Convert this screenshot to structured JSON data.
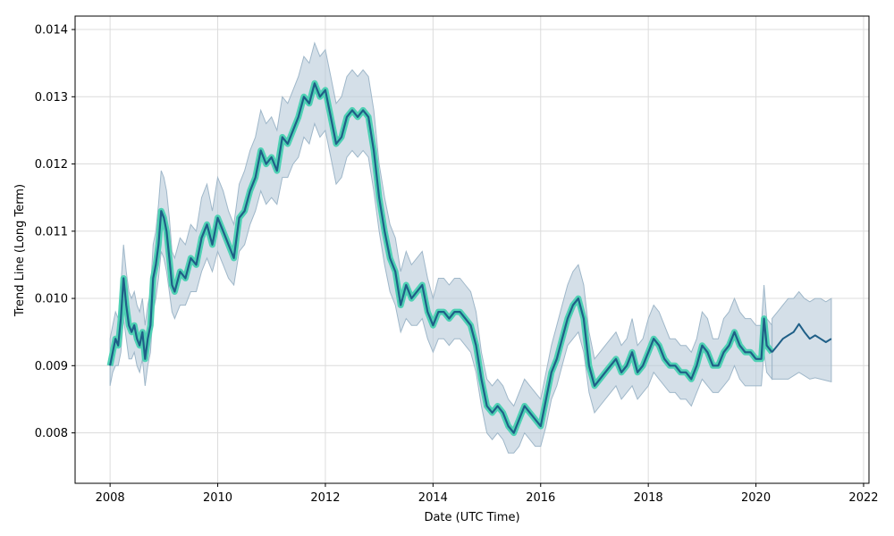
{
  "chart_data": {
    "type": "line",
    "title": "",
    "xlabel": "Date (UTC Time)",
    "ylabel": "Trend Line (Long Term)",
    "xlim": [
      2007.35,
      2022.1
    ],
    "ylim": [
      0.00725,
      0.0142
    ],
    "x_ticks": [
      {
        "value": 2008,
        "label": "2008"
      },
      {
        "value": 2010,
        "label": "2010"
      },
      {
        "value": 2012,
        "label": "2012"
      },
      {
        "value": 2014,
        "label": "2014"
      },
      {
        "value": 2016,
        "label": "2016"
      },
      {
        "value": 2018,
        "label": "2018"
      },
      {
        "value": 2020,
        "label": "2020"
      },
      {
        "value": 2022,
        "label": "2022"
      }
    ],
    "y_ticks": [
      {
        "value": 0.008,
        "label": "0.008"
      },
      {
        "value": 0.009,
        "label": "0.009"
      },
      {
        "value": 0.01,
        "label": "0.010"
      },
      {
        "value": 0.011,
        "label": "0.011"
      },
      {
        "value": 0.012,
        "label": "0.012"
      },
      {
        "value": 0.013,
        "label": "0.013"
      },
      {
        "value": 0.014,
        "label": "0.014"
      }
    ],
    "grid": true,
    "colors": {
      "trend_line": "#1f5f87",
      "historical_highlight": "#4fd1b4",
      "band_fill": "#b7cad8",
      "band_edge": "#9fb7c9",
      "grid": "#dcdcdc",
      "axis": "#000000"
    },
    "series": [
      {
        "kind": "historical",
        "x": [
          2008.0,
          2008.05,
          2008.1,
          2008.15,
          2008.2,
          2008.25,
          2008.3,
          2008.35,
          2008.4,
          2008.45,
          2008.5,
          2008.55,
          2008.6,
          2008.65,
          2008.7,
          2008.75,
          2008.8,
          2008.85,
          2008.9,
          2008.95,
          2009.0,
          2009.05,
          2009.1,
          2009.15,
          2009.2,
          2009.3,
          2009.4,
          2009.5,
          2009.6,
          2009.7,
          2009.8,
          2009.9,
          2010.0,
          2010.1,
          2010.2,
          2010.3,
          2010.4,
          2010.5,
          2010.6,
          2010.7,
          2010.8,
          2010.9,
          2011.0,
          2011.1,
          2011.2,
          2011.3,
          2011.4,
          2011.5,
          2011.6,
          2011.7,
          2011.8,
          2011.9,
          2012.0,
          2012.1,
          2012.2,
          2012.3,
          2012.4,
          2012.5,
          2012.6,
          2012.7,
          2012.8,
          2012.9,
          2013.0,
          2013.1,
          2013.2,
          2013.3,
          2013.4,
          2013.5,
          2013.6,
          2013.7,
          2013.8,
          2013.9,
          2014.0,
          2014.1,
          2014.2,
          2014.3,
          2014.4,
          2014.5,
          2014.6,
          2014.7,
          2014.8,
          2014.9,
          2015.0,
          2015.1,
          2015.2,
          2015.3,
          2015.4,
          2015.5,
          2015.6,
          2015.7,
          2015.8,
          2015.9,
          2016.0,
          2016.1,
          2016.2,
          2016.3,
          2016.4,
          2016.5,
          2016.6,
          2016.7,
          2016.8,
          2016.9,
          2017.0,
          2017.1,
          2017.2,
          2017.3,
          2017.4,
          2017.5,
          2017.6,
          2017.7,
          2017.8,
          2017.9,
          2018.0,
          2018.1,
          2018.2,
          2018.3,
          2018.4,
          2018.5,
          2018.6,
          2018.7,
          2018.8,
          2018.9,
          2019.0,
          2019.1,
          2019.2,
          2019.3,
          2019.4,
          2019.5,
          2019.6,
          2019.7,
          2019.8,
          2019.9,
          2020.0,
          2020.1,
          2020.15,
          2020.2,
          2020.3
        ],
        "y": [
          0.009,
          0.0092,
          0.0094,
          0.0093,
          0.0097,
          0.0103,
          0.0099,
          0.0096,
          0.0095,
          0.0096,
          0.0094,
          0.0093,
          0.0095,
          0.0091,
          0.0094,
          0.0096,
          0.0103,
          0.0105,
          0.0108,
          0.0113,
          0.0112,
          0.011,
          0.0106,
          0.0102,
          0.0101,
          0.0104,
          0.0103,
          0.0106,
          0.0105,
          0.0109,
          0.0111,
          0.0108,
          0.0112,
          0.011,
          0.0108,
          0.0106,
          0.0112,
          0.0113,
          0.0116,
          0.0118,
          0.0122,
          0.012,
          0.0121,
          0.0119,
          0.0124,
          0.0123,
          0.0125,
          0.0127,
          0.013,
          0.0129,
          0.0132,
          0.013,
          0.0131,
          0.0127,
          0.0123,
          0.0124,
          0.0127,
          0.0128,
          0.0127,
          0.0128,
          0.0127,
          0.0122,
          0.0115,
          0.011,
          0.0106,
          0.0104,
          0.0099,
          0.0102,
          0.01,
          0.0101,
          0.0102,
          0.0098,
          0.0096,
          0.0098,
          0.0098,
          0.0097,
          0.0098,
          0.0098,
          0.0097,
          0.0096,
          0.0093,
          0.0088,
          0.0084,
          0.0083,
          0.0084,
          0.0083,
          0.0081,
          0.008,
          0.0082,
          0.0084,
          0.0083,
          0.0082,
          0.0081,
          0.0085,
          0.0089,
          0.0091,
          0.0094,
          0.0097,
          0.0099,
          0.01,
          0.0097,
          0.009,
          0.0087,
          0.0088,
          0.0089,
          0.009,
          0.0091,
          0.0089,
          0.009,
          0.0092,
          0.0089,
          0.009,
          0.0092,
          0.0094,
          0.0093,
          0.0091,
          0.009,
          0.009,
          0.0089,
          0.0089,
          0.0088,
          0.009,
          0.0093,
          0.0092,
          0.009,
          0.009,
          0.0092,
          0.0093,
          0.0095,
          0.0093,
          0.0092,
          0.0092,
          0.0091,
          0.0091,
          0.0097,
          0.0093,
          0.0092
        ],
        "lower": [
          0.0087,
          0.0089,
          0.009,
          0.009,
          0.0092,
          0.0097,
          0.0094,
          0.0091,
          0.0091,
          0.0092,
          0.009,
          0.0089,
          0.0091,
          0.0087,
          0.009,
          0.0092,
          0.0098,
          0.01,
          0.0103,
          0.0107,
          0.0106,
          0.0104,
          0.0101,
          0.0098,
          0.0097,
          0.0099,
          0.0099,
          0.0101,
          0.0101,
          0.0104,
          0.0106,
          0.0104,
          0.0107,
          0.0105,
          0.0103,
          0.0102,
          0.0107,
          0.0108,
          0.0111,
          0.0113,
          0.0116,
          0.0114,
          0.0115,
          0.0114,
          0.0118,
          0.0118,
          0.012,
          0.0121,
          0.0124,
          0.0123,
          0.0126,
          0.0124,
          0.0125,
          0.0121,
          0.0117,
          0.0118,
          0.0121,
          0.0122,
          0.0121,
          0.0122,
          0.0121,
          0.0116,
          0.011,
          0.0105,
          0.0101,
          0.0099,
          0.0095,
          0.0097,
          0.0096,
          0.0096,
          0.0097,
          0.0094,
          0.0092,
          0.0094,
          0.0094,
          0.0093,
          0.0094,
          0.0094,
          0.0093,
          0.0092,
          0.0089,
          0.0084,
          0.008,
          0.0079,
          0.008,
          0.0079,
          0.0077,
          0.0077,
          0.0078,
          0.008,
          0.0079,
          0.0078,
          0.0078,
          0.0081,
          0.0085,
          0.0087,
          0.009,
          0.0093,
          0.0094,
          0.0095,
          0.0092,
          0.0086,
          0.0083,
          0.0084,
          0.0085,
          0.0086,
          0.0087,
          0.0085,
          0.0086,
          0.0087,
          0.0085,
          0.0086,
          0.0087,
          0.0089,
          0.0088,
          0.0087,
          0.0086,
          0.0086,
          0.0085,
          0.0085,
          0.0084,
          0.0086,
          0.0088,
          0.0087,
          0.0086,
          0.0086,
          0.0087,
          0.0088,
          0.009,
          0.0088,
          0.0087,
          0.0087,
          0.0087,
          0.0087,
          0.0092,
          0.0089,
          0.0088
        ],
        "upper": [
          0.0094,
          0.0096,
          0.0098,
          0.0097,
          0.0102,
          0.0108,
          0.0104,
          0.0101,
          0.01,
          0.0101,
          0.0099,
          0.0098,
          0.01,
          0.0096,
          0.0099,
          0.0101,
          0.0108,
          0.011,
          0.0114,
          0.0119,
          0.0118,
          0.0116,
          0.0112,
          0.0107,
          0.0106,
          0.0109,
          0.0108,
          0.0111,
          0.011,
          0.0115,
          0.0117,
          0.0113,
          0.0118,
          0.0116,
          0.0113,
          0.0111,
          0.0117,
          0.0119,
          0.0122,
          0.0124,
          0.0128,
          0.0126,
          0.0127,
          0.0125,
          0.013,
          0.0129,
          0.0131,
          0.0133,
          0.0136,
          0.0135,
          0.0138,
          0.0136,
          0.0137,
          0.0133,
          0.0129,
          0.013,
          0.0133,
          0.0134,
          0.0133,
          0.0134,
          0.0133,
          0.0128,
          0.012,
          0.0115,
          0.0111,
          0.0109,
          0.0104,
          0.0107,
          0.0105,
          0.0106,
          0.0107,
          0.0103,
          0.01,
          0.0103,
          0.0103,
          0.0102,
          0.0103,
          0.0103,
          0.0102,
          0.0101,
          0.0098,
          0.0092,
          0.0088,
          0.0087,
          0.0088,
          0.0087,
          0.0085,
          0.0084,
          0.0086,
          0.0088,
          0.0087,
          0.0086,
          0.0085,
          0.0089,
          0.0093,
          0.0096,
          0.0099,
          0.0102,
          0.0104,
          0.0105,
          0.0102,
          0.0095,
          0.0091,
          0.0092,
          0.0093,
          0.0094,
          0.0095,
          0.0093,
          0.0094,
          0.0097,
          0.0093,
          0.0094,
          0.0097,
          0.0099,
          0.0098,
          0.0096,
          0.0094,
          0.0094,
          0.0093,
          0.0093,
          0.0092,
          0.0094,
          0.0098,
          0.0097,
          0.0094,
          0.0094,
          0.0097,
          0.0098,
          0.01,
          0.0098,
          0.0097,
          0.0097,
          0.0096,
          0.0096,
          0.0102,
          0.0097,
          0.0096
        ]
      },
      {
        "kind": "forecast",
        "x": [
          2020.3,
          2020.4,
          2020.5,
          2020.6,
          2020.7,
          2020.8,
          2020.9,
          2021.0,
          2021.1,
          2021.2,
          2021.3,
          2021.4
        ],
        "y": [
          0.0092,
          0.0093,
          0.0094,
          0.00945,
          0.0095,
          0.00962,
          0.0095,
          0.0094,
          0.00945,
          0.0094,
          0.00935,
          0.0094
        ],
        "lower": [
          0.0088,
          0.0088,
          0.0088,
          0.0088,
          0.00885,
          0.0089,
          0.00885,
          0.0088,
          0.00882,
          0.0088,
          0.00878,
          0.00876
        ],
        "upper": [
          0.0097,
          0.0098,
          0.0099,
          0.01,
          0.01,
          0.0101,
          0.01,
          0.00995,
          0.01,
          0.01,
          0.00995,
          0.01
        ]
      }
    ]
  }
}
